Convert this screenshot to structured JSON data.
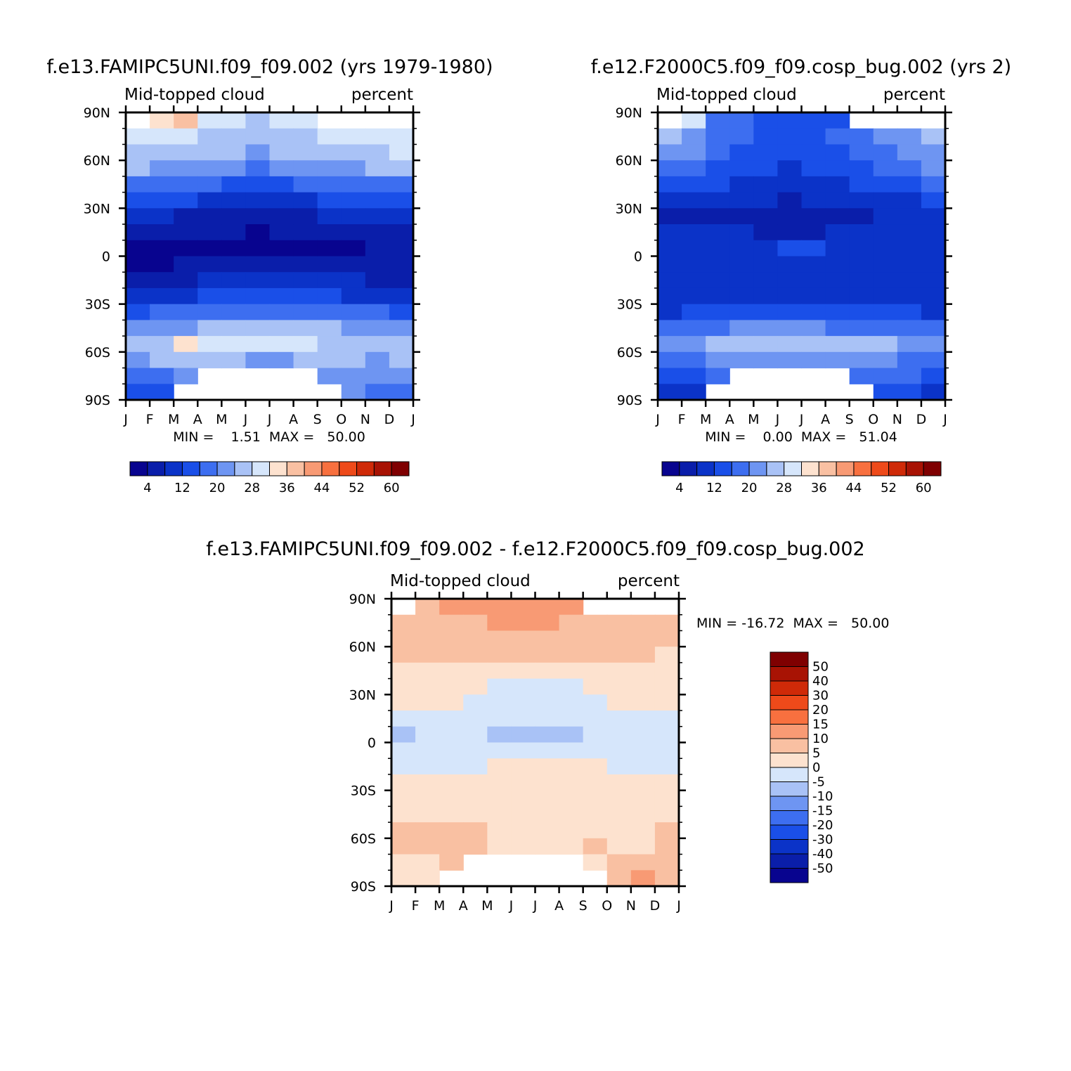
{
  "figure": {
    "month_labels": [
      "J",
      "F",
      "M",
      "A",
      "M",
      "J",
      "J",
      "A",
      "S",
      "O",
      "N",
      "D",
      "J"
    ],
    "lat_labels": [
      "90N",
      "60N",
      "30N",
      "0",
      "30S",
      "60S",
      "90S"
    ]
  },
  "colors": {
    "seq_palette": [
      "#08048f",
      "#0a1eaa",
      "#0b33c8",
      "#1a4fe8",
      "#3d6ef0",
      "#6e95f2",
      "#a9c2f6",
      "#d6e6fb",
      "#fde2cf",
      "#f9c0a2",
      "#f89a74",
      "#f8703f",
      "#ee4a1a",
      "#cf2a08",
      "#a81304",
      "#7f0001"
    ],
    "div_palette": [
      "#08048f",
      "#0a1eaa",
      "#0b33c8",
      "#1a4fe8",
      "#3d6ef0",
      "#6e95f2",
      "#a9c2f6",
      "#d6e6fb",
      "#fde2cf",
      "#f9c0a2",
      "#f89a74",
      "#f8703f",
      "#ee4a1a",
      "#cf2a08",
      "#a81304",
      "#7f0001"
    ]
  },
  "chart_data": [
    {
      "type": "heatmap",
      "id": "panel1",
      "title": "f.e13.FAMIPC5UNI.f09_f09.002 (yrs 1979-1980)",
      "variable": "Mid-topped cloud",
      "units": "percent",
      "stats": "MIN =    1.51  MAX =   50.00",
      "x": [
        "Jan",
        "Feb",
        "Mar",
        "Apr",
        "May",
        "Jun",
        "Jul",
        "Aug",
        "Sep",
        "Oct",
        "Nov",
        "Dec"
      ],
      "y": [
        85,
        75,
        65,
        55,
        45,
        35,
        25,
        15,
        5,
        -5,
        -15,
        -25,
        -35,
        -45,
        -55,
        -65,
        -75,
        -85
      ],
      "colorbar_labels": [
        "4",
        "12",
        "20",
        "28",
        "36",
        "44",
        "52",
        "60"
      ],
      "z": [
        [
          null,
          34,
          36,
          30,
          28,
          26,
          28,
          30,
          null,
          null,
          null,
          null
        ],
        [
          30,
          30,
          28,
          27,
          26,
          25,
          26,
          27,
          28,
          28,
          30,
          30
        ],
        [
          27,
          27,
          26,
          25,
          24,
          23,
          24,
          25,
          26,
          27,
          27,
          28
        ],
        [
          24,
          23,
          22,
          21,
          20,
          19,
          20,
          21,
          22,
          23,
          24,
          24
        ],
        [
          19,
          18,
          17,
          16,
          15,
          14,
          15,
          16,
          17,
          18,
          19,
          19
        ],
        [
          14,
          13,
          12,
          11,
          10,
          9,
          10,
          11,
          12,
          13,
          14,
          14
        ],
        [
          9,
          8,
          7,
          6,
          6,
          5,
          6,
          7,
          8,
          9,
          10,
          10
        ],
        [
          5,
          5,
          4,
          4,
          4,
          3,
          4,
          4,
          5,
          5,
          6,
          6
        ],
        [
          3,
          3,
          3,
          3,
          3,
          2,
          3,
          3,
          3,
          3,
          4,
          4
        ],
        [
          3,
          3,
          4,
          4,
          4,
          4,
          4,
          4,
          4,
          4,
          4,
          4
        ],
        [
          5,
          6,
          7,
          8,
          9,
          10,
          10,
          9,
          9,
          8,
          7,
          6
        ],
        [
          9,
          10,
          11,
          12,
          13,
          13,
          13,
          12,
          12,
          11,
          10,
          9
        ],
        [
          15,
          16,
          17,
          18,
          19,
          19,
          19,
          18,
          18,
          17,
          16,
          15
        ],
        [
          21,
          22,
          23,
          24,
          24,
          25,
          25,
          24,
          24,
          23,
          22,
          21
        ],
        [
          26,
          27,
          34,
          30,
          29,
          29,
          28,
          28,
          27,
          26,
          26,
          27
        ],
        [
          23,
          24,
          25,
          25,
          24,
          23,
          23,
          24,
          25,
          24,
          23,
          24
        ],
        [
          17,
          18,
          20,
          null,
          null,
          null,
          null,
          null,
          20,
          21,
          22,
          20
        ],
        [
          13,
          14,
          null,
          null,
          null,
          null,
          null,
          null,
          null,
          22,
          18,
          16
        ]
      ]
    },
    {
      "type": "heatmap",
      "id": "panel2",
      "title": "f.e12.F2000C5.f09_f09.cosp_bug.002 (yrs 2)",
      "variable": "Mid-topped cloud",
      "units": "percent",
      "stats": "MIN =    0.00  MAX =   51.04",
      "x": [
        "Jan",
        "Feb",
        "Mar",
        "Apr",
        "May",
        "Jun",
        "Jul",
        "Aug",
        "Sep",
        "Oct",
        "Nov",
        "Dec"
      ],
      "y": [
        85,
        75,
        65,
        55,
        45,
        35,
        25,
        15,
        5,
        -5,
        -15,
        -25,
        -35,
        -45,
        -55,
        -65,
        -75,
        -85
      ],
      "colorbar_labels": [
        "4",
        "12",
        "20",
        "28",
        "36",
        "44",
        "52",
        "60"
      ],
      "z": [
        [
          null,
          30,
          18,
          16,
          14,
          13,
          14,
          15,
          null,
          null,
          null,
          null
        ],
        [
          24,
          22,
          18,
          16,
          14,
          13,
          14,
          16,
          18,
          20,
          22,
          24
        ],
        [
          22,
          20,
          17,
          15,
          13,
          12,
          13,
          15,
          17,
          19,
          21,
          23
        ],
        [
          19,
          17,
          15,
          13,
          12,
          11,
          12,
          13,
          15,
          17,
          19,
          20
        ],
        [
          15,
          14,
          12,
          11,
          10,
          9,
          10,
          11,
          12,
          14,
          15,
          16
        ],
        [
          11,
          10,
          9,
          8,
          8,
          7,
          8,
          8,
          9,
          10,
          11,
          12
        ],
        [
          6,
          6,
          5,
          5,
          6,
          5,
          5,
          6,
          7,
          8,
          8,
          8
        ],
        [
          8,
          8,
          8,
          8,
          7,
          7,
          7,
          8,
          8,
          8,
          9,
          9
        ],
        [
          10,
          10,
          10,
          11,
          11,
          12,
          12,
          11,
          10,
          10,
          10,
          10
        ],
        [
          9,
          9,
          9,
          9,
          9,
          9,
          9,
          9,
          9,
          9,
          9,
          9
        ],
        [
          8,
          8,
          8,
          8,
          8,
          8,
          8,
          8,
          8,
          8,
          8,
          8
        ],
        [
          8,
          8,
          8,
          9,
          9,
          9,
          8,
          8,
          8,
          8,
          9,
          9
        ],
        [
          11,
          12,
          13,
          14,
          14,
          14,
          14,
          13,
          13,
          12,
          12,
          11
        ],
        [
          17,
          18,
          19,
          20,
          20,
          20,
          20,
          19,
          19,
          18,
          17,
          17
        ],
        [
          21,
          22,
          24,
          26,
          27,
          27,
          27,
          26,
          25,
          24,
          22,
          21
        ],
        [
          18,
          19,
          20,
          21,
          22,
          22,
          22,
          21,
          21,
          20,
          19,
          18
        ],
        [
          13,
          14,
          16,
          null,
          null,
          null,
          null,
          null,
          18,
          18,
          17,
          15
        ],
        [
          10,
          11,
          null,
          null,
          null,
          null,
          null,
          null,
          null,
          14,
          12,
          11
        ]
      ]
    },
    {
      "type": "heatmap",
      "id": "panel3",
      "title": "f.e13.FAMIPC5UNI.f09_f09.002 - f.e12.F2000C5.f09_f09.cosp_bug.002",
      "variable": "Mid-topped cloud",
      "units": "percent",
      "stats": "MIN = -16.72  MAX =   50.00",
      "x": [
        "Jan",
        "Feb",
        "Mar",
        "Apr",
        "May",
        "Jun",
        "Jul",
        "Aug",
        "Sep",
        "Oct",
        "Nov",
        "Dec"
      ],
      "y": [
        85,
        75,
        65,
        55,
        45,
        35,
        25,
        15,
        5,
        -5,
        -15,
        -25,
        -35,
        -45,
        -55,
        -65,
        -75,
        -85
      ],
      "levels": [
        -50,
        -40,
        -30,
        -20,
        -15,
        -10,
        -5,
        0,
        5,
        10,
        15,
        20,
        30,
        40,
        50
      ],
      "colorbar_labels": [
        "50",
        "40",
        "30",
        "20",
        "15",
        "10",
        "5",
        "0",
        "-5",
        "-10",
        "-15",
        "-20",
        "-30",
        "-40",
        "-50"
      ],
      "z": [
        [
          null,
          6,
          14,
          12,
          12,
          14,
          13,
          13,
          null,
          null,
          null,
          null
        ],
        [
          6,
          8,
          8,
          9,
          10,
          11,
          10,
          9,
          8,
          8,
          8,
          7
        ],
        [
          5,
          6,
          7,
          8,
          8,
          9,
          8,
          8,
          7,
          7,
          6,
          6
        ],
        [
          5,
          5,
          6,
          6,
          6,
          6,
          6,
          6,
          5,
          5,
          5,
          4
        ],
        [
          4,
          3,
          3,
          3,
          3,
          3,
          3,
          3,
          3,
          3,
          3,
          3
        ],
        [
          3,
          2,
          1,
          0,
          -1,
          -2,
          -2,
          -1,
          0,
          1,
          2,
          2
        ],
        [
          3,
          2,
          1,
          -1,
          -2,
          -2,
          -1,
          -2,
          -1,
          1,
          2,
          2
        ],
        [
          -2,
          -3,
          -3,
          -3,
          -3,
          -3,
          -3,
          -3,
          -3,
          -3,
          -3,
          -3
        ],
        [
          -6,
          -5,
          -4,
          -5,
          -6,
          -7,
          -7,
          -6,
          -5,
          -5,
          -4,
          -4
        ],
        [
          -3,
          -3,
          -2,
          -2,
          -2,
          -2,
          -2,
          -2,
          -2,
          -2,
          -3,
          -3
        ],
        [
          -2,
          -2,
          -1,
          -1,
          0,
          1,
          1,
          1,
          0,
          -1,
          -2,
          -2
        ],
        [
          0,
          1,
          2,
          2,
          3,
          3,
          3,
          3,
          3,
          2,
          1,
          0
        ],
        [
          3,
          3,
          3,
          3,
          4,
          4,
          4,
          4,
          4,
          4,
          3,
          3
        ],
        [
          4,
          4,
          4,
          4,
          4,
          4,
          4,
          4,
          4,
          4,
          4,
          4
        ],
        [
          6,
          6,
          8,
          5,
          4,
          4,
          3,
          3,
          3,
          3,
          4,
          5
        ],
        [
          5,
          5,
          6,
          6,
          4,
          3,
          3,
          4,
          5,
          4,
          4,
          5
        ],
        [
          4,
          4,
          5,
          null,
          null,
          null,
          null,
          null,
          4,
          6,
          7,
          5
        ],
        [
          3,
          3,
          null,
          null,
          null,
          null,
          null,
          null,
          null,
          8,
          12,
          5
        ]
      ]
    }
  ]
}
